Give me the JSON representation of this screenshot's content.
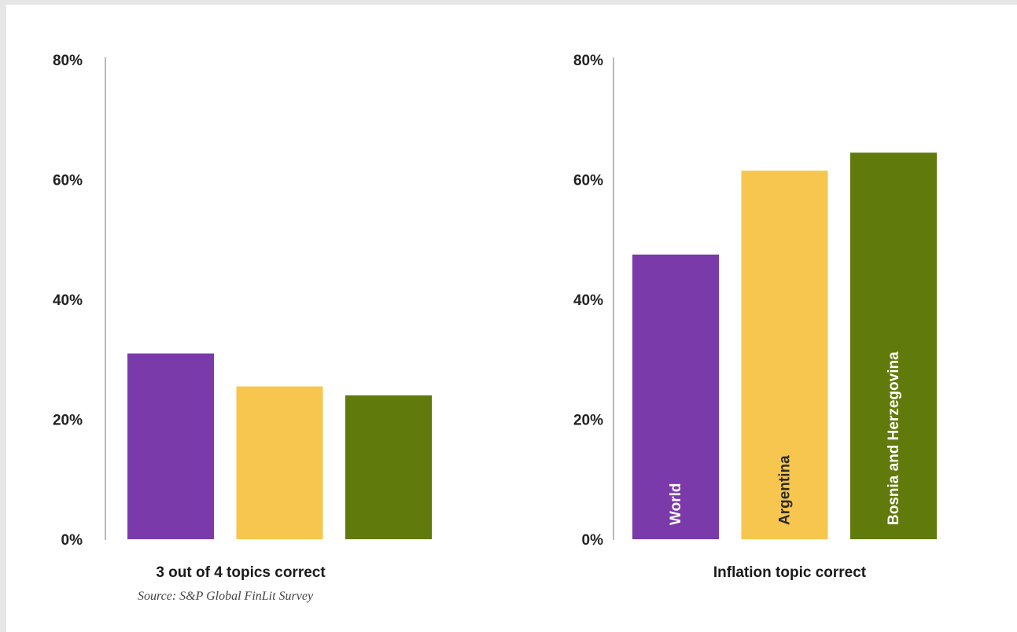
{
  "colors": {
    "world": "#7a3aaa",
    "argentina": "#f7c64e",
    "bosnia": "#617a0c",
    "axis": "#8a8a8a",
    "background": "#e6e6e6"
  },
  "chart_data": [
    {
      "type": "bar",
      "xlabel": "3 out of 4 topics correct",
      "yticks": [
        "0%",
        "20%",
        "40%",
        "60%",
        "80%"
      ],
      "ylim": [
        0,
        80
      ],
      "categories": [
        "World",
        "Argentina",
        "Bosnia and Herzegovina"
      ],
      "values": [
        31,
        25.5,
        24
      ],
      "show_bar_labels": false
    },
    {
      "type": "bar",
      "xlabel": "Inflation topic correct",
      "yticks": [
        "0%",
        "20%",
        "40%",
        "60%",
        "80%"
      ],
      "ylim": [
        0,
        80
      ],
      "categories": [
        "World",
        "Argentina",
        "Bosnia and Herzegovina"
      ],
      "values": [
        47.5,
        61.5,
        64.5
      ],
      "show_bar_labels": true
    }
  ],
  "source": "Source: S&P Global FinLit Survey"
}
